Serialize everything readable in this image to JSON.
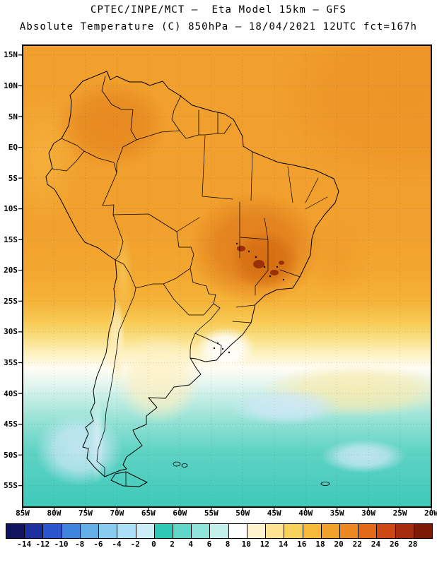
{
  "header": {
    "title_line1": "CPTEC/INPE/MCT —  Eta Model 15km — GFS",
    "title_line2": "Absolute Temperature (C) 850hPa — 18/04/2021 12UTC fct=167h"
  },
  "map": {
    "lat_labels": [
      "15N",
      "10N",
      "5N",
      "EQ",
      "5S",
      "10S",
      "15S",
      "20S",
      "25S",
      "30S",
      "35S",
      "40S",
      "45S",
      "50S",
      "55S"
    ],
    "lon_labels": [
      "85W",
      "80W",
      "75W",
      "70W",
      "65W",
      "60W",
      "55W",
      "50W",
      "45W",
      "40W",
      "35W",
      "30W",
      "25W",
      "20W"
    ]
  },
  "colorbar": {
    "unit": "C",
    "tick_labels": [
      "-14",
      "-12",
      "-10",
      "-8",
      "-6",
      "-4",
      "-2",
      "0",
      "2",
      "4",
      "6",
      "8",
      "10",
      "12",
      "14",
      "16",
      "18",
      "20",
      "22",
      "24",
      "26",
      "28"
    ],
    "segment_colors": [
      "#11135f",
      "#1c2f9e",
      "#2b55cc",
      "#3f85dd",
      "#62b0e8",
      "#88ccee",
      "#abdff3",
      "#cceef8",
      "#2fc7b5",
      "#5ed6c8",
      "#8fe4da",
      "#c3f1ea",
      "#ffffff",
      "#fdf3cd",
      "#fbe391",
      "#f9d25c",
      "#f6b93a",
      "#f2a02c",
      "#ec8722",
      "#e06a1a",
      "#cc4712",
      "#a52c0c",
      "#7c1a06"
    ]
  },
  "chart_data": {
    "type": "heatmap",
    "title": "Absolute Temperature (C) 850hPa",
    "source": "CPTEC/INPE/MCT",
    "model": "Eta Model 15km — GFS",
    "valid": "18/04/2021 12UTC fct=167h",
    "units": "C",
    "lon_range": [
      "85W",
      "20W"
    ],
    "lat_range": [
      "15N",
      "55S"
    ],
    "colorbar_ticks_c": [
      -14,
      -12,
      -10,
      -8,
      -6,
      -4,
      -2,
      0,
      2,
      4,
      6,
      8,
      10,
      12,
      14,
      16,
      18,
      20,
      22,
      24,
      26,
      28
    ],
    "legend_position": "bottom"
  }
}
